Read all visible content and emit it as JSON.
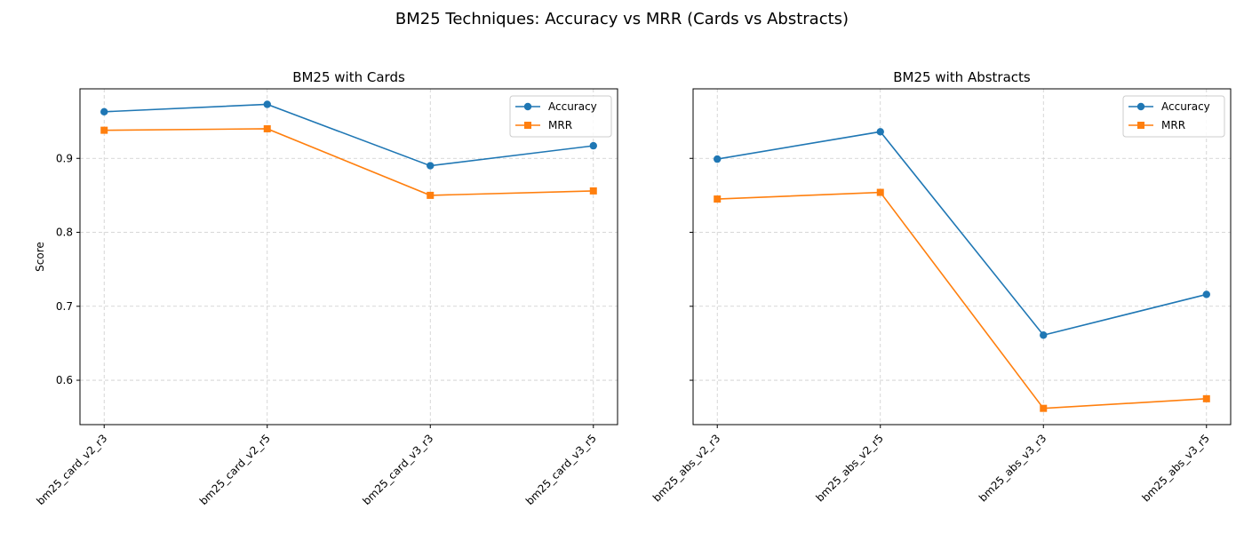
{
  "figure": {
    "suptitle": "BM25 Techniques: Accuracy vs MRR (Cards vs Abstracts)"
  },
  "colors": {
    "accuracy": "#1f77b4",
    "mrr": "#ff7f0e",
    "grid": "#cccccc"
  },
  "chart_data": [
    {
      "type": "line",
      "title": "BM25 with Cards",
      "xlabel": "",
      "ylabel": "Score",
      "categories": [
        "bm25_card_v2_r3",
        "bm25_card_v2_r5",
        "bm25_card_v3_r3",
        "bm25_card_v3_r5"
      ],
      "ylim": [
        0.54,
        0.994
      ],
      "yticks": [
        0.6,
        0.7,
        0.8,
        0.9
      ],
      "grid": true,
      "legend": "top-right",
      "series": [
        {
          "name": "Accuracy",
          "marker": "circle",
          "values": [
            0.963,
            0.973,
            0.89,
            0.917
          ]
        },
        {
          "name": "MRR",
          "marker": "square",
          "values": [
            0.938,
            0.94,
            0.85,
            0.856
          ]
        }
      ]
    },
    {
      "type": "line",
      "title": "BM25 with Abstracts",
      "xlabel": "",
      "ylabel": "",
      "categories": [
        "bm25_abs_v2_r3",
        "bm25_abs_v2_r5",
        "bm25_abs_v3_r3",
        "bm25_abs_v3_r5"
      ],
      "ylim": [
        0.54,
        0.994
      ],
      "yticks": [
        0.6,
        0.7,
        0.8,
        0.9
      ],
      "shared_y": true,
      "grid": true,
      "legend": "top-right",
      "series": [
        {
          "name": "Accuracy",
          "marker": "circle",
          "values": [
            0.899,
            0.936,
            0.661,
            0.716
          ]
        },
        {
          "name": "MRR",
          "marker": "square",
          "values": [
            0.845,
            0.854,
            0.562,
            0.575
          ]
        }
      ]
    }
  ]
}
